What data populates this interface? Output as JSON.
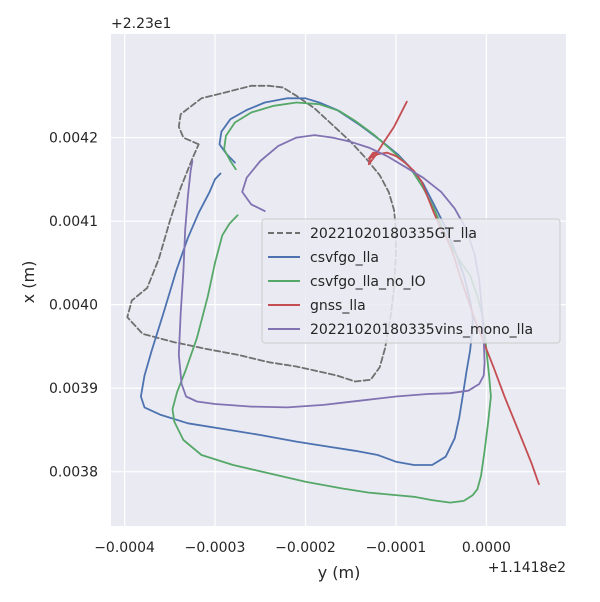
{
  "chart_data": {
    "type": "line",
    "xlabel": "y (m)",
    "ylabel": "x (m)",
    "x_offset_label": "+1.1418e2",
    "y_offset_label": "+2.23e1",
    "xlim": [
      -0.000415,
      8.8e-05
    ],
    "ylim": [
      0.003735,
      0.004324
    ],
    "x_ticks": [
      {
        "value": -0.0004,
        "label": "−0.0004"
      },
      {
        "value": -0.0003,
        "label": "−0.0003"
      },
      {
        "value": -0.0002,
        "label": "−0.0002"
      },
      {
        "value": -0.0001,
        "label": "−0.0001"
      },
      {
        "value": 0.0,
        "label": "0.0000"
      }
    ],
    "y_ticks": [
      {
        "value": 0.0038,
        "label": "0.0038"
      },
      {
        "value": 0.0039,
        "label": "0.0039"
      },
      {
        "value": 0.004,
        "label": "0.0040"
      },
      {
        "value": 0.0041,
        "label": "0.0041"
      },
      {
        "value": 0.0042,
        "label": "0.0042"
      }
    ],
    "grid": true,
    "legend_position": "center-right",
    "series": [
      {
        "name": "20221020180335GT_lla",
        "color": "#707070",
        "dash": true,
        "x": [
          -0.000318,
          -0.000335,
          -0.00034,
          -0.000338,
          -0.000315,
          -0.000285,
          -0.00026,
          -0.00024,
          -0.000225,
          -0.00021,
          -0.00019,
          -0.00017,
          -0.00015,
          -0.000133,
          -0.000118,
          -0.000108,
          -0.000102,
          -0.0001,
          -0.0001,
          -0.000102,
          -0.000106,
          -0.000112,
          -0.000118,
          -0.000128,
          -0.000145,
          -0.000165,
          -0.000185,
          -0.00021,
          -0.00024,
          -0.000275,
          -0.00031,
          -0.000345,
          -0.00038,
          -0.000397,
          -0.000392,
          -0.000375,
          -0.000362,
          -0.00035,
          -0.000338,
          -0.000325,
          -0.000318
        ],
        "y": [
          0.004192,
          0.0042,
          0.004213,
          0.004228,
          0.004247,
          0.004255,
          0.004262,
          0.004262,
          0.00426,
          0.00425,
          0.004235,
          0.004215,
          0.004195,
          0.004175,
          0.004155,
          0.004135,
          0.004113,
          0.00409,
          0.00406,
          0.00402,
          0.003985,
          0.003948,
          0.003925,
          0.00391,
          0.003908,
          0.003915,
          0.00392,
          0.003926,
          0.003931,
          0.00394,
          0.003947,
          0.003955,
          0.003965,
          0.003985,
          0.004005,
          0.00402,
          0.004055,
          0.0041,
          0.00414,
          0.004175,
          0.004192
        ]
      },
      {
        "name": "csvfgo_lla",
        "color": "#4c72b0",
        "dash": false,
        "x": [
          -0.000278,
          -0.000287,
          -0.000295,
          -0.000293,
          -0.000283,
          -0.000265,
          -0.000245,
          -0.00022,
          -0.0002,
          -0.000185,
          -0.000165,
          -0.00014,
          -0.000115,
          -9.8e-05,
          -8.5e-05,
          -7e-05,
          -5.8e-05,
          -4.5e-05,
          -3.5e-05,
          -2.5e-05,
          -1.8e-05,
          -1.5e-05,
          -1.6e-05,
          -1.8e-05,
          -2.2e-05,
          -2.6e-05,
          -3e-05,
          -3.5e-05,
          -4.5e-05,
          -6e-05,
          -8e-05,
          -0.0001,
          -0.00012,
          -0.000145,
          -0.000175,
          -0.00021,
          -0.00025,
          -0.00029,
          -0.00033,
          -0.00036,
          -0.000378,
          -0.000382,
          -0.000378,
          -0.00037,
          -0.000357,
          -0.000343,
          -0.00033,
          -0.000318,
          -0.000306,
          -0.0003,
          -0.000294
        ],
        "y": [
          0.00417,
          0.00418,
          0.004192,
          0.004207,
          0.004222,
          0.004233,
          0.004242,
          0.004247,
          0.004247,
          0.004242,
          0.004233,
          0.004215,
          0.004195,
          0.00418,
          0.004165,
          0.004145,
          0.00412,
          0.004092,
          0.004065,
          0.004035,
          0.004005,
          0.003985,
          0.003965,
          0.003945,
          0.00392,
          0.003892,
          0.003865,
          0.00384,
          0.003818,
          0.003808,
          0.003808,
          0.003812,
          0.00382,
          0.003825,
          0.00383,
          0.003836,
          0.003844,
          0.003851,
          0.003858,
          0.003868,
          0.003877,
          0.00389,
          0.003915,
          0.003945,
          0.00399,
          0.00404,
          0.00408,
          0.00411,
          0.004135,
          0.00415,
          0.004157
        ]
      },
      {
        "name": "csvfgo_lla_no_IO",
        "color": "#55a868",
        "dash": false,
        "x": [
          -0.000277,
          -0.000283,
          -0.00029,
          -0.000288,
          -0.000278,
          -0.00026,
          -0.000235,
          -0.00021,
          -0.000185,
          -0.000163,
          -0.000145,
          -0.000125,
          -0.000105,
          -8.5e-05,
          -7e-05,
          -5.8e-05,
          -4.8e-05,
          -3.8e-05,
          -2.8e-05,
          -1.8e-05,
          -1e-05,
          -5e-06,
          -2e-06,
          0.0,
          3e-06,
          5e-06,
          2e-06,
          -2e-06,
          -6e-06,
          -1e-05,
          -1.5e-05,
          -2.5e-05,
          -4e-05,
          -6e-05,
          -8e-05,
          -0.0001,
          -0.00013,
          -0.00016,
          -0.0002,
          -0.00024,
          -0.00028,
          -0.000315,
          -0.000335,
          -0.000345,
          -0.000347,
          -0.000342,
          -0.000333,
          -0.00032,
          -0.000308,
          -0.0003,
          -0.000292,
          -0.000284,
          -0.000275
        ],
        "y": [
          0.004162,
          0.004172,
          0.004186,
          0.004202,
          0.004218,
          0.00423,
          0.004238,
          0.004242,
          0.00424,
          0.004232,
          0.00422,
          0.004204,
          0.004185,
          0.004165,
          0.00414,
          0.004115,
          0.00409,
          0.004068,
          0.00405,
          0.004035,
          0.00401,
          0.00399,
          0.00397,
          0.003945,
          0.003915,
          0.00389,
          0.00386,
          0.003825,
          0.003795,
          0.003779,
          0.003772,
          0.003765,
          0.003763,
          0.003766,
          0.00377,
          0.003772,
          0.003775,
          0.00378,
          0.003788,
          0.003798,
          0.003808,
          0.00382,
          0.003838,
          0.00386,
          0.003875,
          0.003895,
          0.00392,
          0.00396,
          0.00401,
          0.00405,
          0.004083,
          0.004097,
          0.004107
        ]
      },
      {
        "name": "gnss_lla",
        "color": "#c44e52",
        "dash": false,
        "x": [
          -8.8e-05,
          -0.000102,
          -0.000115,
          -0.000123,
          -0.00013,
          -0.000128,
          -0.000122,
          -0.000125,
          -0.00013,
          -0.00012,
          -0.00011,
          -0.0001,
          -9e-05,
          -8e-05,
          -7.2e-05,
          -6.6e-05,
          -5.8e-05,
          -5e-05,
          -4.5e-05,
          -4e-05,
          -3.5e-05,
          -2.8e-05,
          -2e-05,
          -1.2e-05,
          -3e-06,
          8e-06,
          2e-05,
          3.5e-05,
          5e-05,
          5.8e-05
        ],
        "y": [
          0.004243,
          0.004213,
          0.004192,
          0.004178,
          0.004168,
          0.004178,
          0.004182,
          0.004182,
          0.004175,
          0.00418,
          0.004182,
          0.004178,
          0.00417,
          0.00416,
          0.004148,
          0.004132,
          0.00411,
          0.00409,
          0.004082,
          0.00407,
          0.004055,
          0.00403,
          0.004005,
          0.00398,
          0.003955,
          0.003925,
          0.00389,
          0.00385,
          0.00381,
          0.003785
        ]
      },
      {
        "name": "20221020180335vins_mono_lla",
        "color": "#8172b2",
        "dash": false,
        "x": [
          -0.000245,
          -0.00026,
          -0.00027,
          -0.000265,
          -0.00025,
          -0.00023,
          -0.00021,
          -0.00019,
          -0.00017,
          -0.00015,
          -0.00013,
          -0.00011,
          -9e-05,
          -7e-05,
          -5e-05,
          -3.5e-05,
          -2.2e-05,
          -1.3e-05,
          -8e-06,
          -5e-06,
          -3e-06,
          -2e-06,
          -3e-06,
          -8e-06,
          -2e-05,
          -4e-05,
          -6.5e-05,
          -0.0001,
          -0.00014,
          -0.00018,
          -0.00022,
          -0.00026,
          -0.0003,
          -0.00032,
          -0.000332,
          -0.000337,
          -0.00034,
          -0.000338,
          -0.000335,
          -0.000333,
          -0.00033,
          -0.000327,
          -0.000325
        ],
        "y": [
          0.004112,
          0.00412,
          0.004135,
          0.004152,
          0.004172,
          0.00419,
          0.0042,
          0.004203,
          0.0042,
          0.004195,
          0.004188,
          0.004178,
          0.004165,
          0.004152,
          0.004135,
          0.004115,
          0.00409,
          0.00406,
          0.00403,
          0.003995,
          0.00396,
          0.00393,
          0.003915,
          0.003905,
          0.003897,
          0.003894,
          0.003893,
          0.00389,
          0.003885,
          0.00388,
          0.003877,
          0.003878,
          0.003881,
          0.003884,
          0.00389,
          0.003905,
          0.00394,
          0.00399,
          0.00404,
          0.00409,
          0.00413,
          0.00416,
          0.004172
        ]
      }
    ]
  }
}
